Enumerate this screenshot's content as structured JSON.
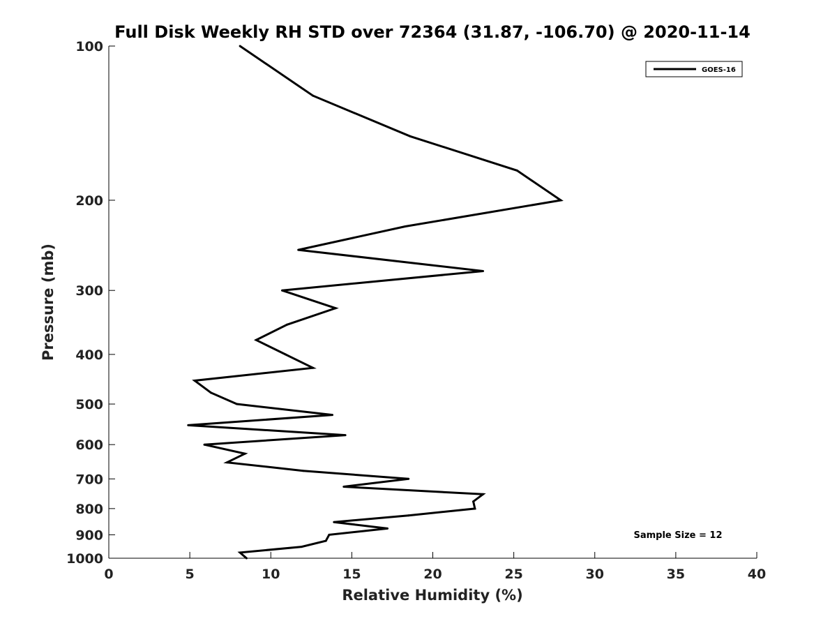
{
  "chart_data": {
    "type": "line",
    "title": "Full Disk Weekly RH STD over 72364 (31.87, -106.70) @ 2020-11-14",
    "xlabel": "Relative Humidity (%)",
    "ylabel": "Pressure (mb)",
    "xlim": [
      0,
      40
    ],
    "ylim": [
      100,
      1000
    ],
    "yscale": "log",
    "y_reversed": true,
    "grid": false,
    "legend_position": "top-right",
    "x_ticks": [
      "0",
      "5",
      "10",
      "15",
      "20",
      "25",
      "30",
      "35",
      "40"
    ],
    "y_ticks": [
      "100",
      "200",
      "300",
      "400",
      "500",
      "600",
      "700",
      "800",
      "900",
      "1000"
    ],
    "annotation": "Sample Size = 12",
    "series": [
      {
        "name": "GOES-16",
        "color": "#000000",
        "points": [
          [
            8.1,
            100
          ],
          [
            12.6,
            125
          ],
          [
            18.6,
            150
          ],
          [
            25.2,
            175
          ],
          [
            27.9,
            200
          ],
          [
            18.3,
            225
          ],
          [
            11.7,
            250
          ],
          [
            23.1,
            275
          ],
          [
            10.7,
            300
          ],
          [
            14.0,
            325
          ],
          [
            11.0,
            350
          ],
          [
            9.1,
            375
          ],
          [
            10.9,
            400
          ],
          [
            12.6,
            425
          ],
          [
            5.3,
            450
          ],
          [
            6.3,
            475
          ],
          [
            7.9,
            500
          ],
          [
            13.8,
            525
          ],
          [
            4.9,
            550
          ],
          [
            14.6,
            575
          ],
          [
            5.9,
            600
          ],
          [
            8.4,
            625
          ],
          [
            7.3,
            650
          ],
          [
            12.0,
            675
          ],
          [
            18.5,
            700
          ],
          [
            14.5,
            725
          ],
          [
            23.1,
            750
          ],
          [
            22.5,
            775
          ],
          [
            22.6,
            800
          ],
          [
            18.5,
            825
          ],
          [
            13.9,
            850
          ],
          [
            17.2,
            875
          ],
          [
            13.6,
            900
          ],
          [
            13.4,
            925
          ],
          [
            11.9,
            950
          ],
          [
            8.1,
            975
          ],
          [
            8.5,
            1000
          ]
        ]
      }
    ]
  }
}
